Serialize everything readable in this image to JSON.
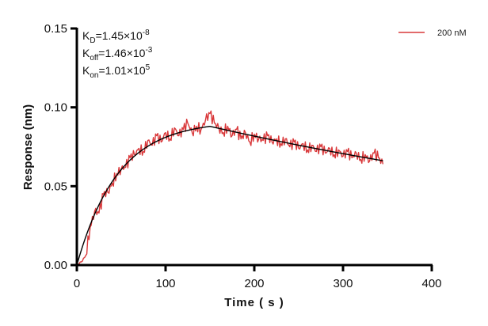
{
  "chart_data": {
    "type": "line",
    "title": "",
    "xlabel": "Time ( s )",
    "ylabel": "Response (nm)",
    "xlim": [
      0,
      400
    ],
    "ylim": [
      0,
      0.15
    ],
    "xticks": [
      "0",
      "100",
      "200",
      "300",
      "400"
    ],
    "yticks": [
      "0.00",
      "0.05",
      "0.10",
      "0.15"
    ],
    "grid": false,
    "legend": {
      "placement": "top-right",
      "entries": [
        "200 nM"
      ]
    },
    "annotations": {
      "kd": {
        "base": "K",
        "sub": "D",
        "value": "=1.45×10",
        "exp": "-8"
      },
      "koff": {
        "base": "K",
        "sub": "off",
        "value": "=1.46×10",
        "exp": "-3"
      },
      "kon": {
        "base": "K",
        "sub": "on",
        "value": "=1.01×10",
        "exp": "5"
      }
    },
    "fit": {
      "kon": 101000,
      "koff": 0.00146,
      "concentration_M": 2e-07,
      "rmax": 0.0915,
      "association_end_s": 150,
      "end_s": 345,
      "color": "#000000"
    },
    "series": [
      {
        "name": "200 nM",
        "color": "#d9383a",
        "x": [
          0,
          5,
          10,
          15,
          20,
          25,
          30,
          35,
          40,
          45,
          50,
          55,
          60,
          65,
          70,
          75,
          80,
          85,
          90,
          95,
          100,
          105,
          110,
          115,
          120,
          125,
          130,
          135,
          140,
          145,
          150,
          155,
          160,
          165,
          170,
          175,
          180,
          185,
          190,
          195,
          200,
          205,
          210,
          215,
          220,
          225,
          230,
          235,
          240,
          245,
          250,
          255,
          260,
          265,
          270,
          275,
          280,
          285,
          290,
          295,
          300,
          305,
          310,
          315,
          320,
          325,
          330,
          335,
          340,
          345
        ],
        "values": [
          0.0,
          0.002,
          0.006,
          0.024,
          0.034,
          0.033,
          0.045,
          0.046,
          0.052,
          0.058,
          0.061,
          0.062,
          0.068,
          0.07,
          0.074,
          0.072,
          0.079,
          0.076,
          0.082,
          0.078,
          0.084,
          0.08,
          0.087,
          0.082,
          0.086,
          0.09,
          0.084,
          0.088,
          0.086,
          0.092,
          0.096,
          0.09,
          0.087,
          0.084,
          0.088,
          0.082,
          0.086,
          0.08,
          0.084,
          0.078,
          0.083,
          0.08,
          0.079,
          0.082,
          0.078,
          0.08,
          0.077,
          0.08,
          0.075,
          0.078,
          0.074,
          0.077,
          0.073,
          0.076,
          0.072,
          0.075,
          0.071,
          0.074,
          0.07,
          0.073,
          0.069,
          0.072,
          0.068,
          0.071,
          0.067,
          0.07,
          0.066,
          0.071,
          0.068,
          0.064
        ]
      }
    ]
  }
}
